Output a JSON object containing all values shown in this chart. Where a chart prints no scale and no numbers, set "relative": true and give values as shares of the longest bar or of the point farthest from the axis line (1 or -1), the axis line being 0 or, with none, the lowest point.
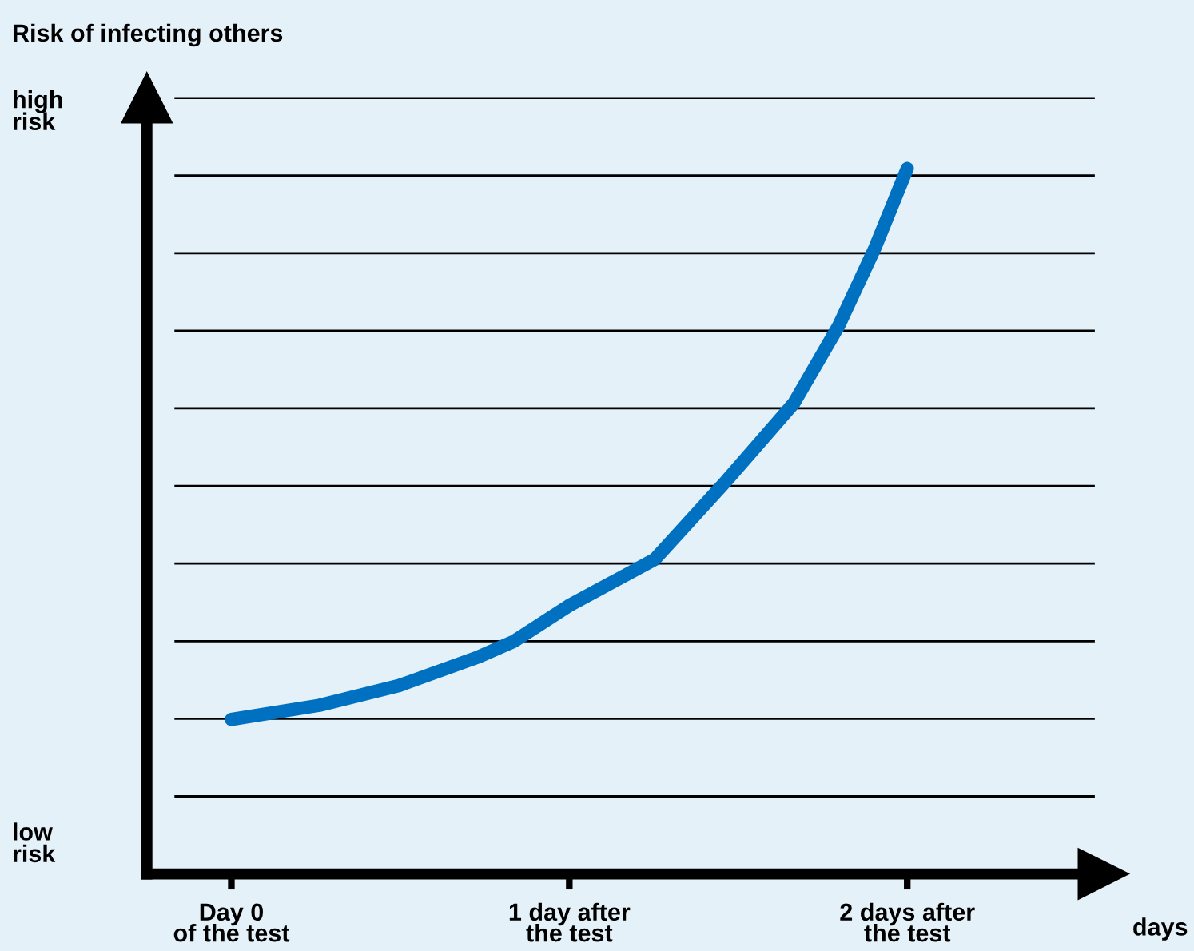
{
  "chart_data": {
    "type": "line",
    "relative": true,
    "ylabel": "Risk of infecting others",
    "xlabel": "days",
    "x": [
      0,
      0.26,
      0.496,
      0.733,
      0.837,
      0.998,
      1.253,
      1.466,
      1.664,
      1.797,
      1.905,
      2.0
    ],
    "series": [
      {
        "color": "#0070c0",
        "values": [
          0.219,
          0.239,
          0.267,
          0.308,
          0.33,
          0.38,
          0.446,
          0.558,
          0.667,
          0.777,
          0.888,
          1.0
        ]
      }
    ],
    "xlim": [
      -0.25,
      2.58
    ],
    "xticks": [
      {
        "value": 0,
        "label": "Day 0\nof the test"
      },
      {
        "value": 1,
        "label": "1 day after\nthe test"
      },
      {
        "value": 2,
        "label": "2 days after\nthe test"
      }
    ],
    "ref_lines": [
      {
        "axis": "y",
        "value": 0.11,
        "color": "#000000"
      },
      {
        "axis": "y",
        "value": 0.22,
        "color": "#000000"
      },
      {
        "axis": "y",
        "value": 0.33,
        "color": "#000000"
      },
      {
        "axis": "y",
        "value": 0.44,
        "color": "#000000"
      },
      {
        "axis": "y",
        "value": 0.55,
        "color": "#000000"
      },
      {
        "axis": "y",
        "value": 0.66,
        "color": "#000000"
      },
      {
        "axis": "y",
        "value": 0.77,
        "color": "#000000"
      },
      {
        "axis": "y",
        "value": 0.88,
        "color": "#000000"
      },
      {
        "axis": "y",
        "value": 0.99,
        "color": "#000000"
      },
      {
        "axis": "y",
        "value": 1.1,
        "color": "#000000"
      }
    ],
    "annotations": [
      "high\nrisk",
      "low\nrisk"
    ],
    "marker": "none",
    "line_style": "solid",
    "grid": false,
    "legend": false
  }
}
